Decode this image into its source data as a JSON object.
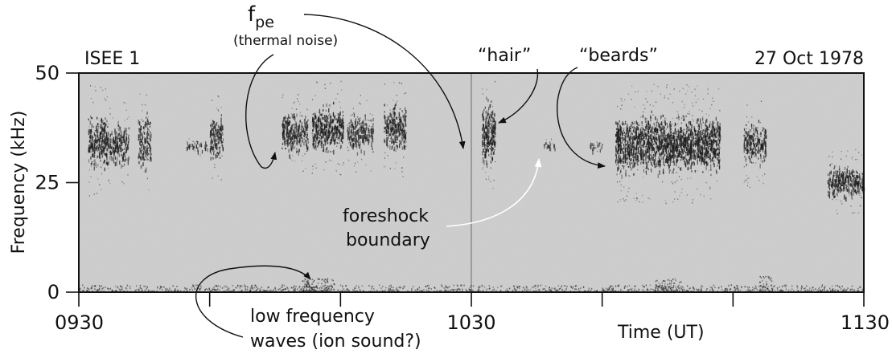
{
  "chart_data": {
    "type": "heatmap",
    "title_left": "ISEE 1",
    "title_right": "27 Oct 1978",
    "xlabel": "Time (UT)",
    "ylabel": "Frequency (kHz)",
    "x_ticks": [
      {
        "value": 0,
        "label": "0930"
      },
      {
        "value": 1,
        "label": ""
      },
      {
        "value": 2,
        "label": ""
      },
      {
        "value": 3,
        "label": "1030"
      },
      {
        "value": 4,
        "label": ""
      },
      {
        "value": 5,
        "label": ""
      },
      {
        "value": 6,
        "label": "1130"
      }
    ],
    "x_range": [
      0,
      6
    ],
    "y_ticks": [
      {
        "value": 0,
        "label": "0"
      },
      {
        "value": 25,
        "label": "25"
      },
      {
        "value": 50,
        "label": "50"
      }
    ],
    "ylim": [
      0,
      50
    ],
    "emission_bursts": [
      {
        "t0": 0.07,
        "t1": 0.22,
        "fmin": 27,
        "fmax": 42,
        "intensity": 0.85
      },
      {
        "t0": 0.22,
        "t1": 0.38,
        "fmin": 28,
        "fmax": 40,
        "intensity": 0.75
      },
      {
        "t0": 0.45,
        "t1": 0.55,
        "fmin": 27,
        "fmax": 42,
        "intensity": 0.7
      },
      {
        "t0": 0.82,
        "t1": 0.98,
        "fmin": 32,
        "fmax": 35,
        "intensity": 0.6
      },
      {
        "t0": 1.0,
        "t1": 1.1,
        "fmin": 29,
        "fmax": 42,
        "intensity": 0.8
      },
      {
        "t0": 1.55,
        "t1": 1.75,
        "fmin": 31,
        "fmax": 42,
        "intensity": 0.85
      },
      {
        "t0": 1.78,
        "t1": 2.02,
        "fmin": 31,
        "fmax": 44,
        "intensity": 0.9
      },
      {
        "t0": 2.05,
        "t1": 2.25,
        "fmin": 31,
        "fmax": 42,
        "intensity": 0.7
      },
      {
        "t0": 2.33,
        "t1": 2.5,
        "fmin": 31,
        "fmax": 44,
        "intensity": 0.85
      },
      {
        "t0": 3.08,
        "t1": 3.18,
        "fmin": 28,
        "fmax": 45,
        "intensity": 0.95
      },
      {
        "t0": 3.55,
        "t1": 3.65,
        "fmin": 32,
        "fmax": 35,
        "intensity": 0.5
      },
      {
        "t0": 3.9,
        "t1": 4.0,
        "fmin": 32,
        "fmax": 35,
        "intensity": 0.5
      },
      {
        "t0": 4.1,
        "t1": 4.9,
        "fmin": 26,
        "fmax": 42,
        "intensity": 0.95
      },
      {
        "t0": 5.08,
        "t1": 5.25,
        "fmin": 28,
        "fmax": 40,
        "intensity": 0.8
      },
      {
        "t0": 5.72,
        "t1": 6.0,
        "fmin": 21,
        "fmax": 30,
        "intensity": 0.9
      }
    ],
    "low_frequency_bands": [
      {
        "t0": 0.0,
        "t1": 6.0,
        "fmin": 0,
        "fmax": 1.5,
        "intensity": 0.55
      },
      {
        "t0": 1.7,
        "t1": 1.95,
        "fmin": 0,
        "fmax": 3,
        "intensity": 0.7
      },
      {
        "t0": 4.4,
        "t1": 4.6,
        "fmin": 0,
        "fmax": 3,
        "intensity": 0.6
      },
      {
        "t0": 5.2,
        "t1": 5.3,
        "fmin": 0,
        "fmax": 3.5,
        "intensity": 0.6
      }
    ],
    "annotations": [
      {
        "id": "fpe",
        "text": "f",
        "subscript": "pe"
      },
      {
        "id": "thermal",
        "text": "(thermal noise)"
      },
      {
        "id": "hair",
        "text": "“hair”"
      },
      {
        "id": "beards",
        "text": "“beards”"
      },
      {
        "id": "foreshock1",
        "text": "foreshock"
      },
      {
        "id": "foreshock2",
        "text": "boundary"
      },
      {
        "id": "lowfreq1",
        "text": "low frequency"
      },
      {
        "id": "lowfreq2",
        "text": "waves (ion sound?)"
      }
    ],
    "colors": {
      "background": "#d2d2d2",
      "emission": "#1e1e1e",
      "frame": "#111111"
    }
  }
}
